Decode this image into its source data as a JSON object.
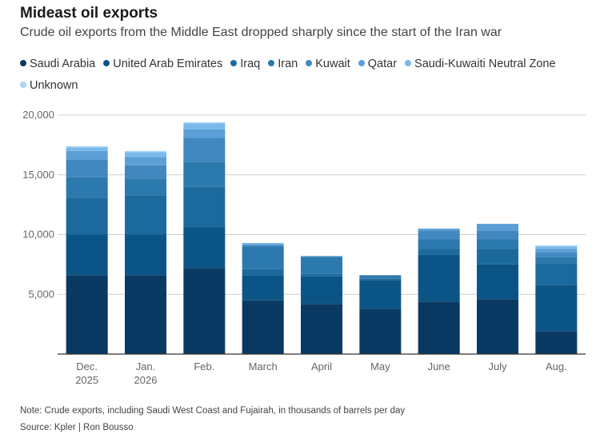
{
  "chart_data": {
    "type": "bar",
    "stacked": true,
    "title": "Mideast oil exports",
    "subtitle": "Crude oil exports from the Middle East dropped sharply since the start of the Iran war",
    "categories": [
      [
        "Dec.",
        "2025"
      ],
      [
        "Jan.",
        "2026"
      ],
      [
        "Feb."
      ],
      [
        "March"
      ],
      [
        "April"
      ],
      [
        "May"
      ],
      [
        "June"
      ],
      [
        "July"
      ],
      [
        "Aug."
      ]
    ],
    "ylim": [
      0,
      20000
    ],
    "yticks": [
      5000,
      10000,
      15000,
      20000
    ],
    "ytick_labels": [
      "5,000",
      "10,000",
      "15,000",
      "20,000"
    ],
    "grid": true,
    "legend_position": "top",
    "series": [
      {
        "name": "Saudi Arabia",
        "color": "#0a3a63",
        "values": [
          6600,
          6600,
          7200,
          4500,
          4200,
          3800,
          4400,
          4600,
          1900
        ]
      },
      {
        "name": "United Arab Emirates",
        "color": "#0b5586",
        "values": [
          3400,
          3400,
          3400,
          2100,
          2300,
          2400,
          3900,
          2900,
          3900
        ]
      },
      {
        "name": "Iraq",
        "color": "#1c6a9d",
        "values": [
          3100,
          3300,
          3400,
          500,
          200,
          100,
          500,
          1300,
          1800
        ]
      },
      {
        "name": "Iran",
        "color": "#2c79ae",
        "values": [
          1700,
          1400,
          2100,
          1900,
          1400,
          300,
          800,
          800,
          500
        ]
      },
      {
        "name": "Kuwait",
        "color": "#4088bf",
        "values": [
          1500,
          1100,
          2000,
          100,
          100,
          0,
          700,
          700,
          400
        ]
      },
      {
        "name": "Qatar",
        "color": "#5b9fd6",
        "values": [
          700,
          700,
          700,
          100,
          0,
          0,
          200,
          600,
          300
        ]
      },
      {
        "name": "Saudi-Kuwaiti Neutral Zone",
        "color": "#7ab9ea",
        "values": [
          300,
          400,
          500,
          100,
          0,
          0,
          0,
          0,
          200
        ]
      },
      {
        "name": "Unknown",
        "color": "#a9d6f5",
        "values": [
          100,
          100,
          100,
          0,
          0,
          0,
          0,
          0,
          100
        ]
      }
    ],
    "note": "Note: Crude exports, including Saudi West Coast and Fujairah, in thousands of barrels per day",
    "source": "Source: Kpler | Ron Bousso"
  }
}
